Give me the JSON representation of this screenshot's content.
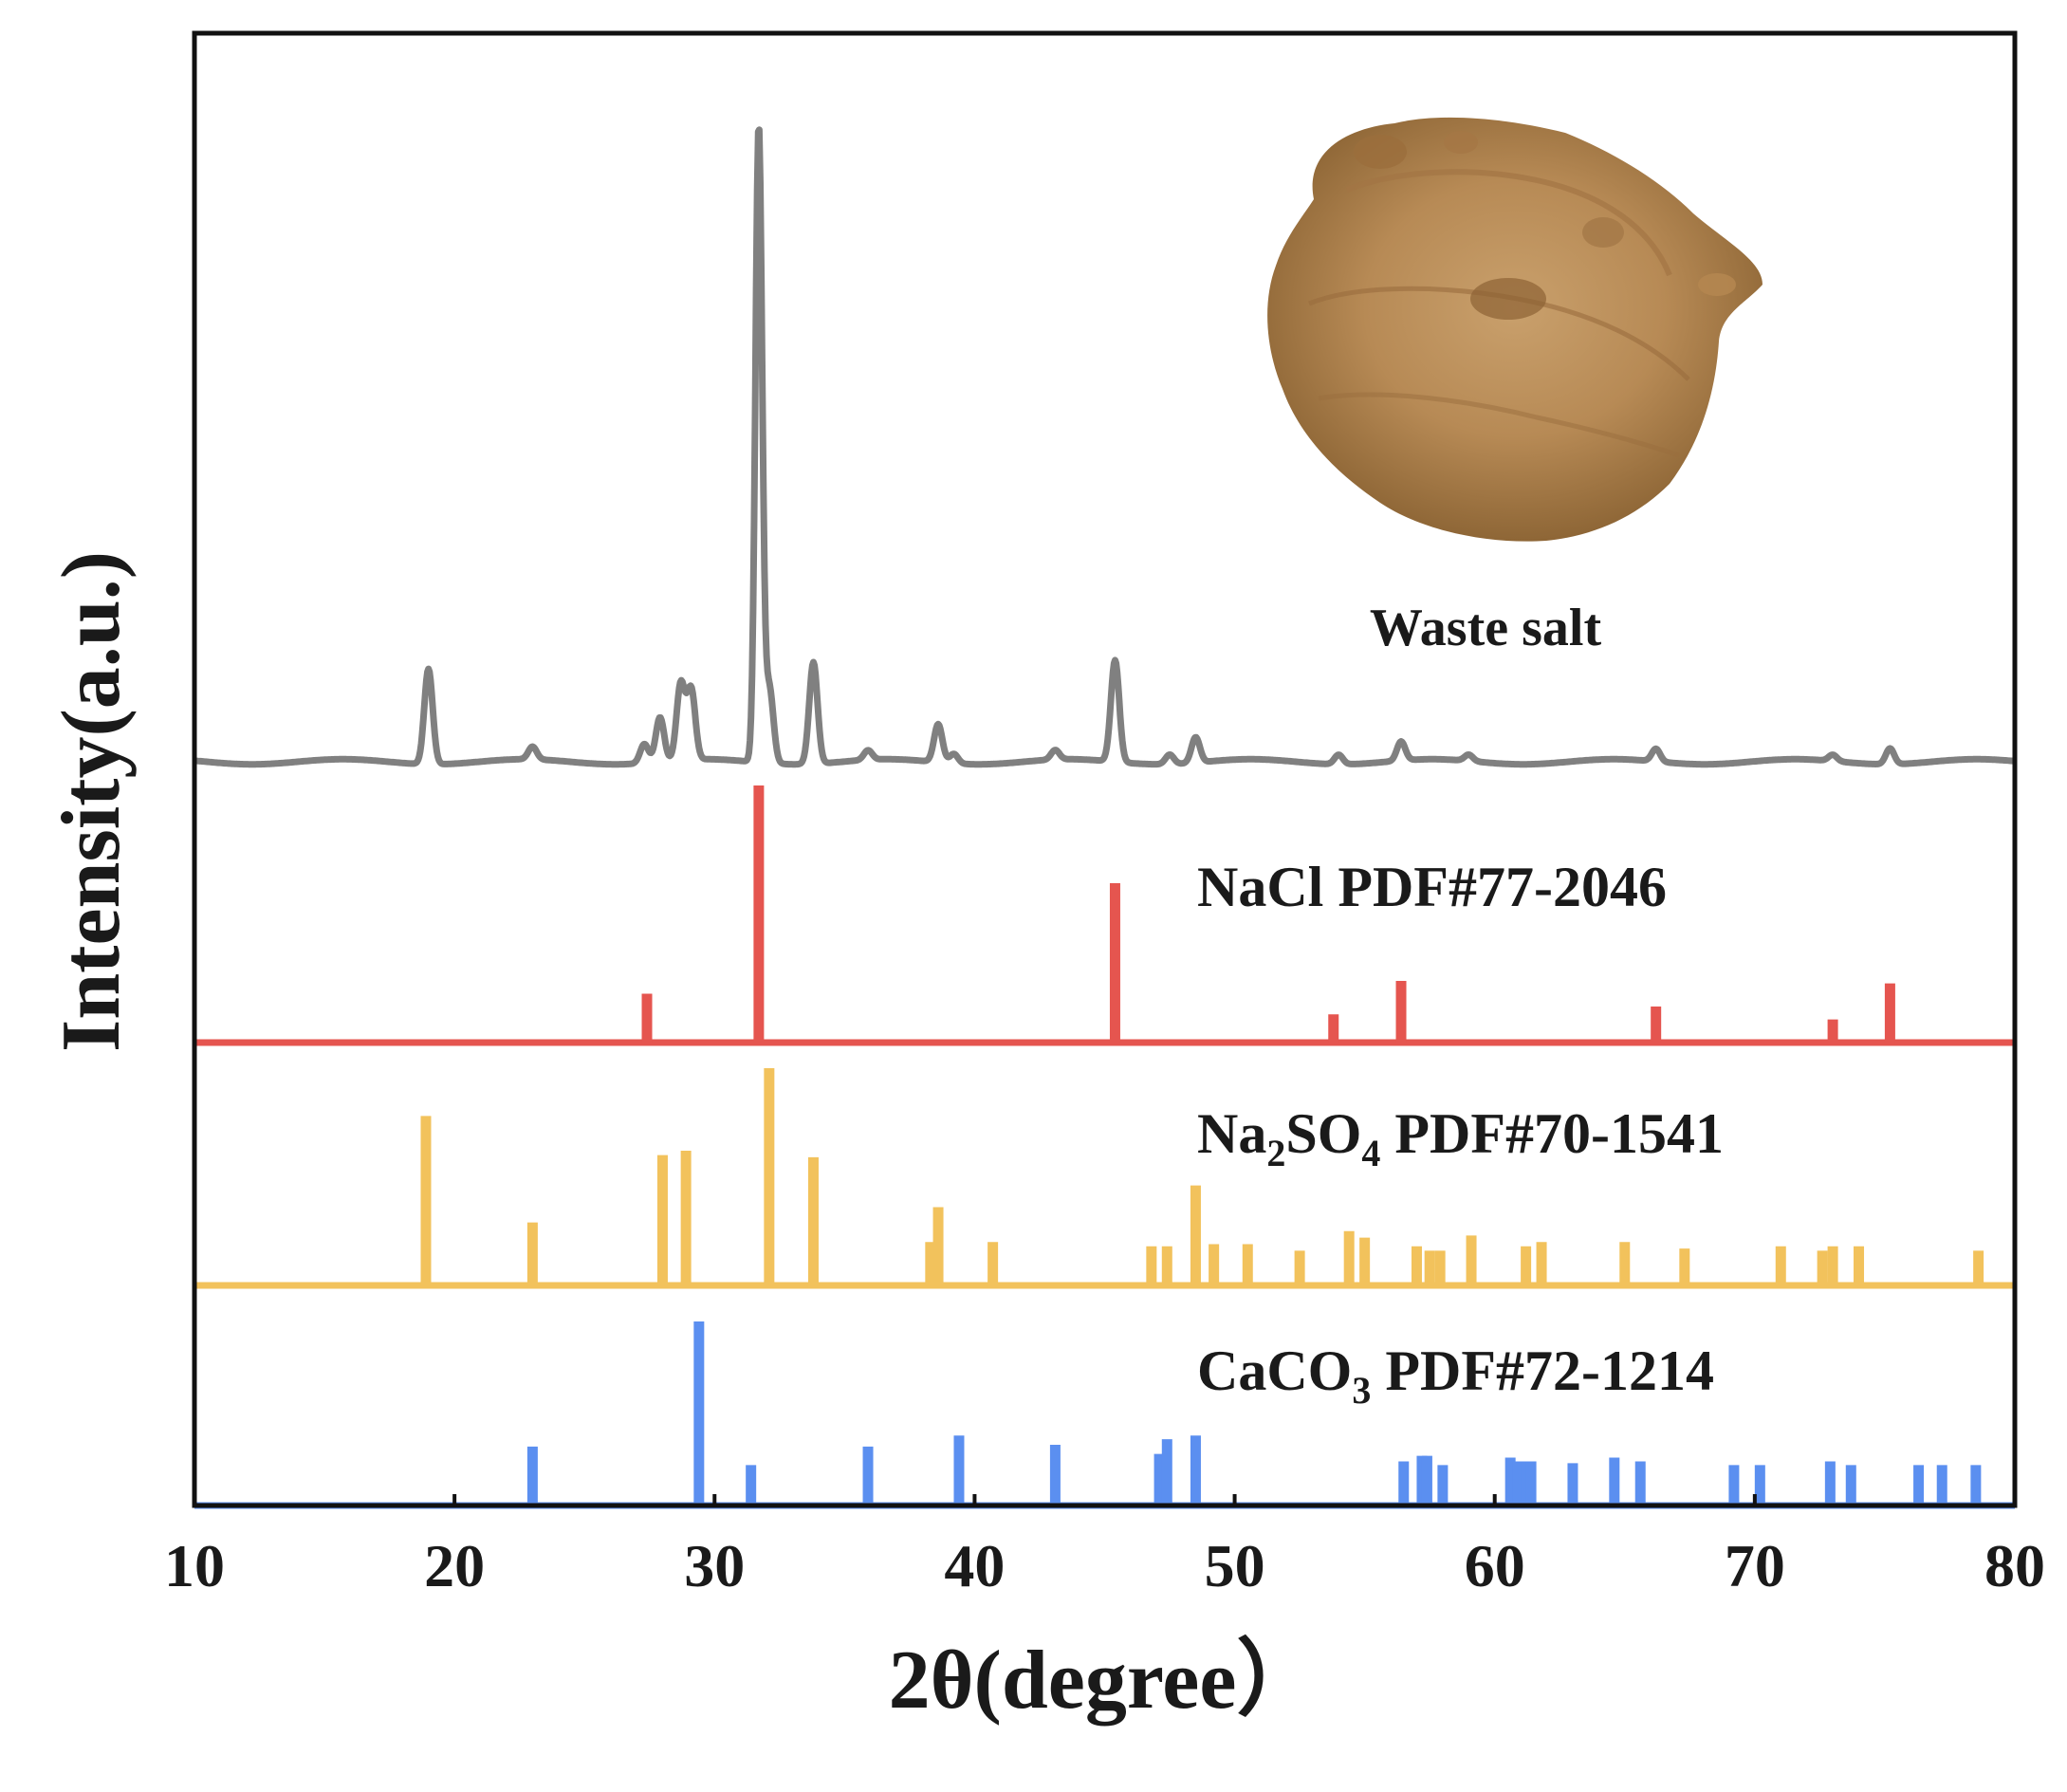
{
  "chart_data": {
    "type": "line",
    "xlabel": "2θ(degree）",
    "ylabel": "Intensity(a.u.)",
    "xlim": [
      10,
      80
    ],
    "x_ticks": [
      "10",
      "20",
      "30",
      "40",
      "50",
      "60",
      "70",
      "80"
    ],
    "y_ticks_shown": false,
    "grid": false,
    "inset_image": {
      "label": "Waste salt",
      "description_icon": "brown-powder-pile"
    },
    "series": [
      {
        "name": "Waste salt",
        "color": "#808080",
        "kind": "pattern",
        "peaks": [
          {
            "x": 19.0,
            "h": 0.15
          },
          {
            "x": 23.0,
            "h": 0.02
          },
          {
            "x": 27.3,
            "h": 0.03
          },
          {
            "x": 27.9,
            "h": 0.07
          },
          {
            "x": 28.7,
            "h": 0.12
          },
          {
            "x": 29.1,
            "h": 0.11
          },
          {
            "x": 31.7,
            "h": 1.0
          },
          {
            "x": 32.1,
            "h": 0.12
          },
          {
            "x": 33.8,
            "h": 0.16
          },
          {
            "x": 35.9,
            "h": 0.015
          },
          {
            "x": 38.6,
            "h": 0.06
          },
          {
            "x": 39.2,
            "h": 0.015
          },
          {
            "x": 43.1,
            "h": 0.015
          },
          {
            "x": 45.4,
            "h": 0.16
          },
          {
            "x": 47.5,
            "h": 0.015
          },
          {
            "x": 48.5,
            "h": 0.04
          },
          {
            "x": 54.0,
            "h": 0.015
          },
          {
            "x": 56.4,
            "h": 0.03
          },
          {
            "x": 59.0,
            "h": 0.01
          },
          {
            "x": 66.2,
            "h": 0.02
          },
          {
            "x": 73.0,
            "h": 0.01
          },
          {
            "x": 75.2,
            "h": 0.025
          }
        ]
      },
      {
        "name": "NaCl  PDF#77-2046",
        "color": "#e5554f",
        "kind": "sticks",
        "sticks": [
          {
            "x": 27.4,
            "v": 0.19
          },
          {
            "x": 31.7,
            "v": 1.0
          },
          {
            "x": 45.4,
            "v": 0.62
          },
          {
            "x": 53.8,
            "v": 0.11
          },
          {
            "x": 56.4,
            "v": 0.24
          },
          {
            "x": 66.2,
            "v": 0.14
          },
          {
            "x": 73.0,
            "v": 0.09
          },
          {
            "x": 75.2,
            "v": 0.23
          }
        ]
      },
      {
        "name": "Na₂SO₄ PDF#70-1541",
        "color": "#f2c25c",
        "kind": "sticks",
        "sticks": [
          {
            "x": 18.9,
            "v": 0.78
          },
          {
            "x": 23.0,
            "v": 0.29
          },
          {
            "x": 28.0,
            "v": 0.6
          },
          {
            "x": 28.9,
            "v": 0.62
          },
          {
            "x": 32.1,
            "v": 1.0
          },
          {
            "x": 33.8,
            "v": 0.59
          },
          {
            "x": 38.3,
            "v": 0.2
          },
          {
            "x": 38.6,
            "v": 0.36
          },
          {
            "x": 40.7,
            "v": 0.2
          },
          {
            "x": 46.8,
            "v": 0.18
          },
          {
            "x": 47.4,
            "v": 0.18
          },
          {
            "x": 48.5,
            "v": 0.46
          },
          {
            "x": 49.2,
            "v": 0.19
          },
          {
            "x": 50.5,
            "v": 0.19
          },
          {
            "x": 52.5,
            "v": 0.16
          },
          {
            "x": 54.4,
            "v": 0.25
          },
          {
            "x": 55.0,
            "v": 0.22
          },
          {
            "x": 57.0,
            "v": 0.18
          },
          {
            "x": 57.5,
            "v": 0.16
          },
          {
            "x": 57.9,
            "v": 0.16
          },
          {
            "x": 59.1,
            "v": 0.23
          },
          {
            "x": 61.2,
            "v": 0.18
          },
          {
            "x": 61.8,
            "v": 0.2
          },
          {
            "x": 65.0,
            "v": 0.2
          },
          {
            "x": 67.3,
            "v": 0.17
          },
          {
            "x": 71.0,
            "v": 0.18
          },
          {
            "x": 72.6,
            "v": 0.16
          },
          {
            "x": 73.0,
            "v": 0.18
          },
          {
            "x": 74.0,
            "v": 0.18
          },
          {
            "x": 78.6,
            "v": 0.16
          }
        ]
      },
      {
        "name": "CaCO₃ PDF#72-1214",
        "color": "#5b8ff0",
        "kind": "sticks",
        "sticks": [
          {
            "x": 23.0,
            "v": 0.32
          },
          {
            "x": 29.4,
            "v": 1.0
          },
          {
            "x": 31.4,
            "v": 0.22
          },
          {
            "x": 35.9,
            "v": 0.32
          },
          {
            "x": 39.4,
            "v": 0.38
          },
          {
            "x": 43.1,
            "v": 0.33
          },
          {
            "x": 47.1,
            "v": 0.28
          },
          {
            "x": 47.4,
            "v": 0.36
          },
          {
            "x": 48.5,
            "v": 0.38
          },
          {
            "x": 56.5,
            "v": 0.24
          },
          {
            "x": 57.2,
            "v": 0.27
          },
          {
            "x": 57.4,
            "v": 0.27
          },
          {
            "x": 58.0,
            "v": 0.22
          },
          {
            "x": 60.6,
            "v": 0.26
          },
          {
            "x": 60.9,
            "v": 0.24
          },
          {
            "x": 61.2,
            "v": 0.24
          },
          {
            "x": 61.4,
            "v": 0.24
          },
          {
            "x": 63.0,
            "v": 0.23
          },
          {
            "x": 64.6,
            "v": 0.26
          },
          {
            "x": 65.6,
            "v": 0.24
          },
          {
            "x": 69.2,
            "v": 0.22
          },
          {
            "x": 70.2,
            "v": 0.22
          },
          {
            "x": 72.9,
            "v": 0.24
          },
          {
            "x": 73.7,
            "v": 0.22
          },
          {
            "x": 76.3,
            "v": 0.22
          },
          {
            "x": 77.2,
            "v": 0.22
          },
          {
            "x": 78.5,
            "v": 0.22
          }
        ]
      }
    ]
  },
  "labels": {
    "nacl": "NaCl  PDF#77-2046",
    "na2so4_a": "Na",
    "na2so4_s1": "2",
    "na2so4_b": "SO",
    "na2so4_s2": "4",
    "na2so4_c": " PDF#70-1541",
    "caco3_a": "CaCO",
    "caco3_s": "3",
    "caco3_b": " PDF#72-1214"
  }
}
